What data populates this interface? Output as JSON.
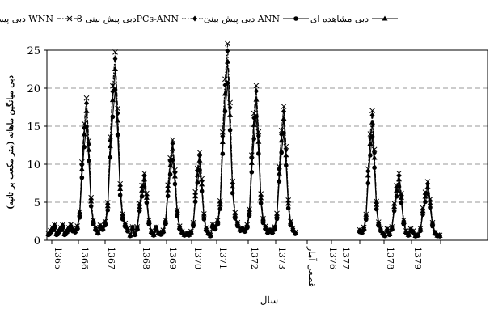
{
  "chart_data": {
    "type": "line",
    "xlabel": "سال",
    "ylabel": "دبی میانگین ماهانه (متر مکعب بر ثانیه)",
    "ylim": [
      0,
      25
    ],
    "yticks": [
      0,
      5,
      10,
      15,
      20,
      25
    ],
    "grid": "horizontal-dashed",
    "legend_position": "top",
    "x_tick_labels": [
      "1365",
      "1366",
      "1367",
      "1368",
      "1369",
      "1370",
      "1371",
      "1372",
      "1373",
      "قطعی آمار",
      "1376",
      "1377",
      "1378",
      "1379"
    ],
    "series": [
      {
        "name": "دبی مشاهده ای",
        "marker": "triangle",
        "line": "solid"
      },
      {
        "name": "دبی پیش بینی ANN",
        "marker": "circle",
        "line": "solid"
      },
      {
        "name": "دبی پیش بینی 8PCs-ANN",
        "marker": "diamond",
        "line": "dotted"
      },
      {
        "name": "دبی پیش بینی WNN",
        "marker": "x",
        "line": "dash-dot"
      }
    ],
    "years": [
      {
        "label": "1365",
        "peak": 2.0
      },
      {
        "label": "1366",
        "peak": 17.0
      },
      {
        "label": "1367",
        "peak": 22.5
      },
      {
        "label": "1368",
        "peak": 8.0
      },
      {
        "label": "1369",
        "peak": 12.0
      },
      {
        "label": "1370",
        "peak": 10.5
      },
      {
        "label": "1371",
        "peak": 23.5
      },
      {
        "label": "1372",
        "peak": 18.5
      },
      {
        "label": "1373",
        "peak": 16.0
      },
      {
        "label": "1376",
        "peak": 15.5
      },
      {
        "label": "1378",
        "peak": 8.0
      },
      {
        "label": "1379",
        "peak": 7.0
      }
    ]
  }
}
